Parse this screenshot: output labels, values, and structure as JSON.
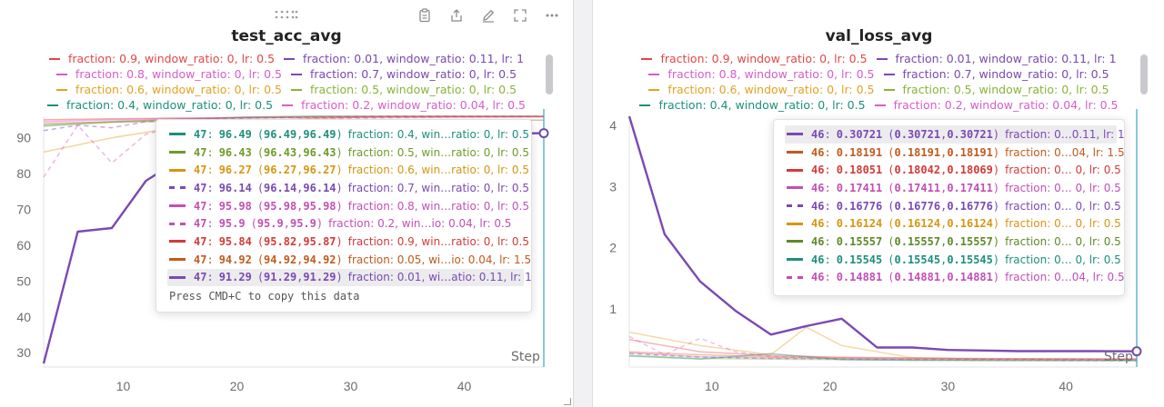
{
  "toolbar_icons": [
    "clipboard-icon",
    "share-icon",
    "edit-icon",
    "fullscreen-icon",
    "more-icon"
  ],
  "legend_entries": [
    {
      "label": "fraction: 0.9, window_ratio: 0, lr: 0.5",
      "color": "#e04848",
      "dash": false
    },
    {
      "label": "fraction: 0.01, window_ratio: 0.11, lr: 1",
      "color": "#7b49b3",
      "dash": false
    },
    {
      "label": "fraction: 0.8, window_ratio: 0, lr: 0.5",
      "color": "#d65ec8",
      "dash": false
    },
    {
      "label": "fraction: 0.7, window_ratio: 0, lr: 0.5",
      "color": "#7b49b3",
      "dash": true
    },
    {
      "label": "fraction: 0.6, window_ratio: 0, lr: 0.5",
      "color": "#e3a223",
      "dash": false
    },
    {
      "label": "fraction: 0.5, window_ratio: 0, lr: 0.5",
      "color": "#8ab33b",
      "dash": false
    },
    {
      "label": "fraction: 0.4, window_ratio: 0, lr: 0.5",
      "color": "#1e8f7d",
      "dash": false
    },
    {
      "label": "fraction: 0.2, window_ratio: 0.04, lr: 0.5",
      "color": "#d65ec8",
      "dash": true
    }
  ],
  "chart_data": [
    {
      "type": "line",
      "title": "test_acc_avg",
      "xlabel": "Step",
      "ylabel": "",
      "xlim": [
        3,
        47
      ],
      "ylim": [
        26,
        96
      ],
      "xticks": [
        10,
        20,
        30,
        40
      ],
      "yticks": [
        30,
        40,
        50,
        60,
        70,
        80,
        90
      ],
      "grid": false,
      "legend_position": "top",
      "series": [
        {
          "name": "fraction: 0.01, window_ratio: 0.11, lr: 1",
          "color": "#7b49b3",
          "dash": false,
          "width": 2.4,
          "opacity": 1,
          "x": [
            3,
            6,
            9,
            12,
            15,
            18,
            21,
            24,
            27,
            30,
            33,
            36,
            39,
            42,
            45,
            47
          ],
          "y": [
            27,
            63.8,
            64.8,
            78,
            84,
            87,
            88.5,
            89.5,
            90,
            90.3,
            90.6,
            90.8,
            91,
            91.1,
            91.2,
            91.29
          ]
        },
        {
          "name": "fraction: 0.4, window_ratio: 0, lr: 0.5",
          "color": "#1e8f7d",
          "dash": false,
          "width": 1.5,
          "opacity": 0.45,
          "x": [
            3,
            9,
            15,
            21,
            27,
            33,
            39,
            47
          ],
          "y": [
            93.5,
            94.5,
            95.2,
            95.8,
            96.1,
            96.3,
            96.4,
            96.49
          ]
        },
        {
          "name": "fraction: 0.5, window_ratio: 0, lr: 0.5",
          "color": "#8ab33b",
          "dash": false,
          "width": 1.5,
          "opacity": 0.45,
          "x": [
            3,
            9,
            15,
            21,
            27,
            33,
            39,
            47
          ],
          "y": [
            93.2,
            94.3,
            95.1,
            95.7,
            96.0,
            96.2,
            96.35,
            96.43
          ]
        },
        {
          "name": "fraction: 0.6, window_ratio: 0, lr: 0.5",
          "color": "#e3a223",
          "dash": false,
          "width": 1.5,
          "opacity": 0.45,
          "x": [
            3,
            9,
            15,
            21,
            27,
            33,
            39,
            47
          ],
          "y": [
            86,
            90,
            93,
            94.5,
            95.4,
            95.9,
            96.1,
            96.27
          ]
        },
        {
          "name": "fraction: 0.7, window_ratio: 0, lr: 0.5",
          "color": "#7b49b3",
          "dash": true,
          "width": 1.5,
          "opacity": 0.45,
          "x": [
            3,
            6,
            9,
            12,
            15,
            21,
            27,
            33,
            39,
            47
          ],
          "y": [
            92,
            93.5,
            92.8,
            94.5,
            95,
            95.5,
            95.8,
            96,
            96.1,
            96.14
          ]
        },
        {
          "name": "fraction: 0.8, window_ratio: 0, lr: 0.5",
          "color": "#d65ec8",
          "dash": false,
          "width": 1.5,
          "opacity": 0.45,
          "x": [
            3,
            9,
            15,
            21,
            27,
            33,
            39,
            47
          ],
          "y": [
            94.5,
            95,
            95.3,
            95.6,
            95.8,
            95.9,
            95.95,
            95.98
          ]
        },
        {
          "name": "fraction: 0.2, window_ratio: 0.04, lr: 0.5",
          "color": "#d65ec8",
          "dash": true,
          "width": 1.5,
          "opacity": 0.45,
          "x": [
            3,
            6,
            9,
            12,
            15,
            21,
            27,
            33,
            39,
            47
          ],
          "y": [
            79,
            93.5,
            83,
            91,
            93.5,
            94.8,
            95.3,
            95.6,
            95.8,
            95.9
          ]
        },
        {
          "name": "fraction: 0.9, window_ratio: 0, lr: 0.5",
          "color": "#e04848",
          "dash": false,
          "width": 1.5,
          "opacity": 0.45,
          "x": [
            3,
            9,
            15,
            21,
            27,
            33,
            39,
            47
          ],
          "y": [
            95,
            95.3,
            95.5,
            95.6,
            95.7,
            95.75,
            95.8,
            95.84
          ]
        },
        {
          "name": "fraction: 0.05, window_ratio: 0.04, lr: 1.5",
          "color": "#d4662a",
          "dash": false,
          "width": 1.5,
          "opacity": 0.45,
          "x": [
            3,
            9,
            15,
            21,
            27,
            33,
            39,
            47
          ],
          "y": [
            94,
            94.4,
            94.6,
            94.75,
            94.82,
            94.87,
            94.9,
            94.92
          ]
        }
      ],
      "hover_step": 47,
      "hover_marker_value": 91.29,
      "tooltip": {
        "rows": [
          {
            "step": "47",
            "value": "96.49",
            "min": "96.49",
            "max": "96.49",
            "name": "fraction: 0.4, win…ratio: 0, lr: 0.5",
            "color": "#1e8f7d",
            "dash": false,
            "highlight": false
          },
          {
            "step": "47",
            "value": "96.43",
            "min": "96.43",
            "max": "96.43",
            "name": "fraction: 0.5, win…ratio: 0, lr: 0.5",
            "color": "#6f9a2c",
            "dash": false,
            "highlight": false
          },
          {
            "step": "47",
            "value": "96.27",
            "min": "96.27",
            "max": "96.27",
            "name": "fraction: 0.6, win…ratio: 0, lr: 0.5",
            "color": "#d59612",
            "dash": false,
            "highlight": false
          },
          {
            "step": "47",
            "value": "96.14",
            "min": "96.14",
            "max": "96.14",
            "name": "fraction: 0.7, win…ratio: 0, lr: 0.5",
            "color": "#7b49b3",
            "dash": true,
            "highlight": false
          },
          {
            "step": "47",
            "value": "95.98",
            "min": "95.98",
            "max": "95.98",
            "name": "fraction: 0.8, win…ratio: 0, lr: 0.5",
            "color": "#c24fb5",
            "dash": false,
            "highlight": false
          },
          {
            "step": "47",
            "value": "95.9",
            "min": "95.9",
            "max": "95.9",
            "name": "fraction: 0.2, win…io: 0.04, lr: 0.5",
            "color": "#c24fb5",
            "dash": true,
            "highlight": false
          },
          {
            "step": "47",
            "value": "95.84",
            "min": "95.82",
            "max": "95.87",
            "name": "fraction: 0.9, win…ratio: 0, lr: 0.5",
            "color": "#d33a3a",
            "dash": false,
            "highlight": false
          },
          {
            "step": "47",
            "value": "94.92",
            "min": "94.92",
            "max": "94.92",
            "name": "fraction: 0.05, wi…io: 0.04, lr: 1.5",
            "color": "#c25a1e",
            "dash": false,
            "highlight": false
          },
          {
            "step": "47",
            "value": "91.29",
            "min": "91.29",
            "max": "91.29",
            "name": "fraction: 0.01, wi…atio: 0.11, lr: 1",
            "color": "#7b49b3",
            "dash": false,
            "highlight": true
          }
        ],
        "footer": "Press CMD+C to copy this data"
      }
    },
    {
      "type": "line",
      "title": "val_loss_avg",
      "xlabel": "Step",
      "ylabel": "",
      "xlim": [
        3,
        46
      ],
      "ylim": [
        0.05,
        4.15
      ],
      "xticks": [
        10,
        20,
        30,
        40
      ],
      "yticks": [
        1,
        2,
        3,
        4
      ],
      "grid": false,
      "legend_position": "top",
      "series": [
        {
          "name": "fraction: 0.01, window_ratio: 0.11, lr: 1",
          "color": "#7b49b3",
          "dash": false,
          "width": 2.4,
          "opacity": 1,
          "x": [
            3,
            6,
            9,
            12,
            15,
            18,
            21,
            24,
            27,
            30,
            33,
            36,
            39,
            42,
            46
          ],
          "y": [
            4.15,
            2.22,
            1.45,
            0.97,
            0.58,
            0.72,
            0.84,
            0.37,
            0.37,
            0.33,
            0.32,
            0.31,
            0.31,
            0.31,
            0.30721
          ]
        },
        {
          "name": "fraction: 0.6, window_ratio: 0, lr: 0.5",
          "color": "#e3a223",
          "dash": false,
          "width": 1.5,
          "opacity": 0.4,
          "x": [
            3,
            9,
            15,
            18,
            21,
            27,
            33,
            39,
            46
          ],
          "y": [
            0.62,
            0.4,
            0.25,
            0.7,
            0.4,
            0.2,
            0.18,
            0.17,
            0.16124
          ]
        },
        {
          "name": "fraction: 0.9, window_ratio: 0, lr: 0.5",
          "color": "#e04848",
          "dash": false,
          "width": 1.5,
          "opacity": 0.4,
          "x": [
            3,
            9,
            15,
            21,
            27,
            33,
            39,
            46
          ],
          "y": [
            0.5,
            0.3,
            0.24,
            0.21,
            0.2,
            0.19,
            0.185,
            0.18051
          ]
        },
        {
          "name": "fraction: 0.2, window_ratio: 0.04, lr: 0.5",
          "color": "#d65ec8",
          "dash": true,
          "width": 1.5,
          "opacity": 0.4,
          "x": [
            3,
            6,
            9,
            12,
            15,
            21,
            27,
            33,
            39,
            46
          ],
          "y": [
            0.55,
            0.25,
            0.52,
            0.3,
            0.22,
            0.18,
            0.17,
            0.16,
            0.155,
            0.14881
          ]
        },
        {
          "name": "fraction: 0.05, window_ratio: 0.04, lr: 1.5",
          "color": "#d4662a",
          "dash": false,
          "width": 1.5,
          "opacity": 0.4,
          "x": [
            3,
            9,
            15,
            21,
            27,
            33,
            39,
            46
          ],
          "y": [
            0.3,
            0.25,
            0.22,
            0.2,
            0.19,
            0.185,
            0.183,
            0.18191
          ]
        },
        {
          "name": "fraction: 0.8, window_ratio: 0, lr: 0.5",
          "color": "#d65ec8",
          "dash": false,
          "width": 1.5,
          "opacity": 0.4,
          "x": [
            3,
            9,
            15,
            21,
            27,
            33,
            39,
            46
          ],
          "y": [
            0.28,
            0.22,
            0.2,
            0.19,
            0.18,
            0.177,
            0.175,
            0.17411
          ]
        },
        {
          "name": "fraction: 0.7, window_ratio: 0, lr: 0.5",
          "color": "#7b49b3",
          "dash": true,
          "width": 1.5,
          "opacity": 0.4,
          "x": [
            3,
            9,
            15,
            21,
            27,
            33,
            39,
            46
          ],
          "y": [
            0.27,
            0.21,
            0.19,
            0.18,
            0.172,
            0.17,
            0.168,
            0.16776
          ]
        },
        {
          "name": "fraction: 0.5, window_ratio: 0, lr: 0.5",
          "color": "#8ab33b",
          "dash": false,
          "width": 1.5,
          "opacity": 0.4,
          "x": [
            3,
            9,
            15,
            21,
            27,
            33,
            39,
            46
          ],
          "y": [
            0.24,
            0.19,
            0.18,
            0.17,
            0.162,
            0.158,
            0.157,
            0.15557
          ]
        },
        {
          "name": "fraction: 0.4, window_ratio: 0, lr: 0.5",
          "color": "#1e8f7d",
          "dash": false,
          "width": 1.5,
          "opacity": 0.4,
          "x": [
            3,
            9,
            15,
            21,
            27,
            33,
            39,
            46
          ],
          "y": [
            0.23,
            0.18,
            0.27,
            0.17,
            0.16,
            0.157,
            0.156,
            0.15545
          ]
        }
      ],
      "hover_step": 46,
      "hover_marker_value": 0.30721,
      "tooltip": {
        "rows": [
          {
            "step": "46",
            "value": "0.30721",
            "min": "0.30721",
            "max": "0.30721",
            "name": "fraction: 0…0.11, lr: 1",
            "color": "#7b49b3",
            "dash": false,
            "highlight": true
          },
          {
            "step": "46",
            "value": "0.18191",
            "min": "0.18191",
            "max": "0.18191",
            "name": "fraction: 0…04, lr: 1.5",
            "color": "#c25a1e",
            "dash": false,
            "highlight": false
          },
          {
            "step": "46",
            "value": "0.18051",
            "min": "0.18042",
            "max": "0.18069",
            "name": "fraction: 0… 0, lr: 0.5",
            "color": "#d33a3a",
            "dash": false,
            "highlight": false
          },
          {
            "step": "46",
            "value": "0.17411",
            "min": "0.17411",
            "max": "0.17411",
            "name": "fraction: 0… 0, lr: 0.5",
            "color": "#c24fb5",
            "dash": false,
            "highlight": false
          },
          {
            "step": "46",
            "value": "0.16776",
            "min": "0.16776",
            "max": "0.16776",
            "name": "fraction: 0… 0, lr: 0.5",
            "color": "#7b49b3",
            "dash": true,
            "highlight": false
          },
          {
            "step": "46",
            "value": "0.16124",
            "min": "0.16124",
            "max": "0.16124",
            "name": "fraction: 0… 0, lr: 0.5",
            "color": "#d59612",
            "dash": false,
            "highlight": false
          },
          {
            "step": "46",
            "value": "0.15557",
            "min": "0.15557",
            "max": "0.15557",
            "name": "fraction: 0… 0, lr: 0.5",
            "color": "#5f8a28",
            "dash": false,
            "highlight": false
          },
          {
            "step": "46",
            "value": "0.15545",
            "min": "0.15545",
            "max": "0.15545",
            "name": "fraction: 0… 0, lr: 0.5",
            "color": "#1e8f7d",
            "dash": false,
            "highlight": false
          },
          {
            "step": "46",
            "value": "0.14881",
            "min": "0.14881",
            "max": "0.14881",
            "name": "fraction: 0…04, lr: 0.5",
            "color": "#c24fb5",
            "dash": true,
            "highlight": false
          }
        ],
        "footer": ""
      }
    }
  ]
}
